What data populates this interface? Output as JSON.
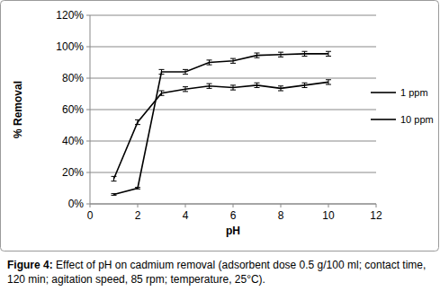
{
  "chart_data": {
    "type": "line",
    "x_label": "pH",
    "y_label": "% Removal",
    "caption_label": "Figure 4:",
    "caption": "Effect of pH on cadmium removal (adsorbent dose 0.5 g/100 ml; contact time, 120 min; agitation speed, 85 rpm; temperature, 25°C).",
    "x": [
      1,
      2,
      3,
      4,
      5,
      6,
      7,
      8,
      9,
      10
    ],
    "series": [
      {
        "name": "1 ppm",
        "color": "#000000",
        "marker": "none",
        "line_style": "solid",
        "values": [
          6,
          10,
          84,
          84,
          90,
          91,
          94.5,
          95,
          95.5,
          95.5
        ],
        "errors": [
          0.5,
          0.5,
          1.5,
          1.5,
          1.5,
          1.5,
          1.5,
          1.5,
          1.5,
          1.5
        ]
      },
      {
        "name": "10 ppm",
        "color": "#000000",
        "marker": "none",
        "line_style": "solid",
        "values": [
          16,
          52,
          70.5,
          73,
          75,
          74,
          75.5,
          73.5,
          75.5,
          77.5
        ],
        "errors": [
          1.5,
          1.5,
          1.5,
          1.5,
          1.5,
          1.5,
          1.5,
          1.5,
          1.5,
          1.5
        ]
      }
    ],
    "xlim": [
      0,
      12
    ],
    "xticks": [
      0,
      2,
      4,
      6,
      8,
      10,
      12
    ],
    "ylim": [
      0,
      120
    ],
    "yticks": [
      {
        "value": 0,
        "label": "0%"
      },
      {
        "value": 20,
        "label": "20%"
      },
      {
        "value": 40,
        "label": "40%"
      },
      {
        "value": 60,
        "label": "60%"
      },
      {
        "value": 80,
        "label": "80%"
      },
      {
        "value": 100,
        "label": "100%"
      },
      {
        "value": 120,
        "label": "120%"
      }
    ],
    "grid": true,
    "legend": "right"
  }
}
